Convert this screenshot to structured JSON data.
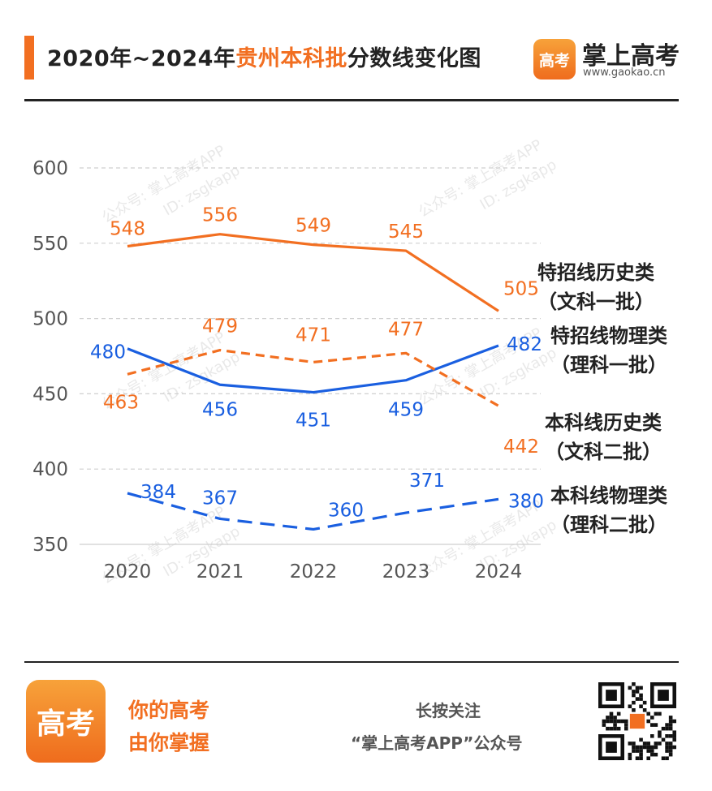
{
  "header": {
    "title_prefix": "2020年~2024年",
    "title_highlight": "贵州本科批",
    "title_suffix": "分数线变化图",
    "brand_logo_text": "高考",
    "brand_name": "掌上高考",
    "brand_url": "www.gaokao.cn"
  },
  "watermark": {
    "line1": "公众号: 掌上高考APP",
    "line2": "ID: zsgkapp"
  },
  "colors": {
    "orange": "#f26f21",
    "blue": "#1a5fe0",
    "grid": "#cfcfcf",
    "axis_text": "#555555"
  },
  "chart_data": {
    "type": "line",
    "title": "2020年~2024年贵州本科批分数线变化图",
    "x": [
      "2020",
      "2021",
      "2022",
      "2023",
      "2024"
    ],
    "ylim": [
      350,
      600
    ],
    "yticks": [
      350,
      400,
      450,
      500,
      550,
      600
    ],
    "grid": true,
    "legend": "inline-right",
    "series": [
      {
        "name_line1": "特招线历史类",
        "name_line2": "（文科一批）",
        "color": "#f26f21",
        "dash": "solid",
        "values": [
          548,
          556,
          549,
          545,
          505
        ]
      },
      {
        "name_line1": "特招线物理类",
        "name_line2": "（理科一批）",
        "color": "#1a5fe0",
        "dash": "solid",
        "values": [
          480,
          456,
          451,
          459,
          482
        ]
      },
      {
        "name_line1": "本科线历史类",
        "name_line2": "（文科二批）",
        "color": "#f26f21",
        "dash": "dashed",
        "values": [
          463,
          479,
          471,
          477,
          442
        ]
      },
      {
        "name_line1": "本科线物理类",
        "name_line2": "（理科二批）",
        "color": "#1a5fe0",
        "dash": "dashed",
        "values": [
          384,
          367,
          360,
          371,
          380
        ]
      }
    ]
  },
  "footer": {
    "logo_text": "高考",
    "slogan_line1": "你的高考",
    "slogan_line2": "由你掌握",
    "follow_line1": "长按关注",
    "follow_line2": "“掌上高考APP”公众号",
    "qr_icon": "qr-code-icon"
  }
}
